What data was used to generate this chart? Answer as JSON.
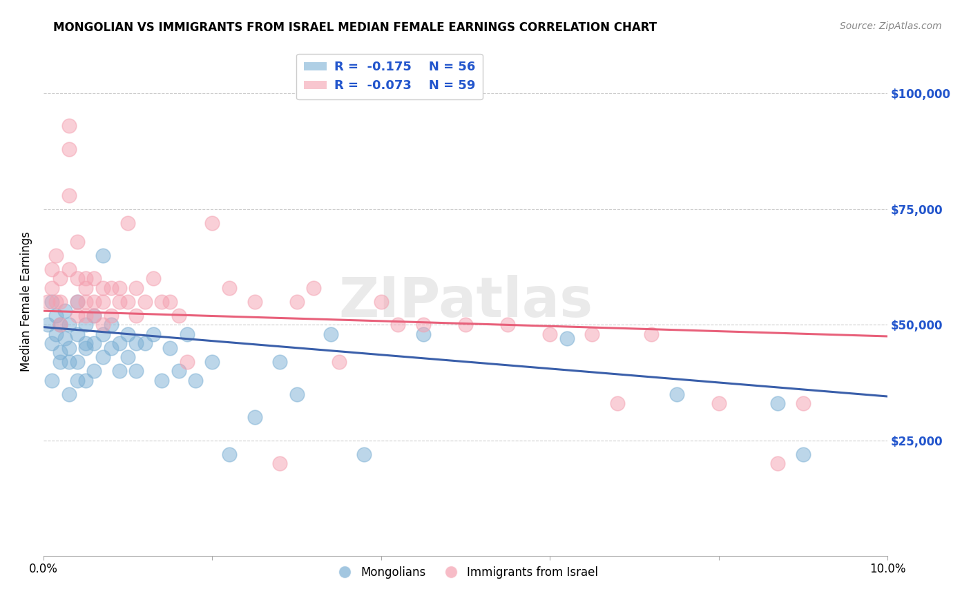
{
  "title": "MONGOLIAN VS IMMIGRANTS FROM ISRAEL MEDIAN FEMALE EARNINGS CORRELATION CHART",
  "source": "Source: ZipAtlas.com",
  "ylabel": "Median Female Earnings",
  "xlim": [
    0.0,
    0.1
  ],
  "ylim": [
    0,
    110000
  ],
  "yticks": [
    25000,
    50000,
    75000,
    100000
  ],
  "ytick_labels": [
    "$25,000",
    "$50,000",
    "$75,000",
    "$100,000"
  ],
  "xticks": [
    0.0,
    0.02,
    0.04,
    0.06,
    0.08,
    0.1
  ],
  "xtick_labels": [
    "0.0%",
    "",
    "",
    "",
    "",
    "10.0%"
  ],
  "background_color": "#ffffff",
  "grid_color": "#cccccc",
  "blue_color": "#7bafd4",
  "pink_color": "#f4a0b0",
  "blue_line_color": "#3a5faa",
  "pink_line_color": "#e8607a",
  "watermark": "ZIPatlas",
  "legend_R_blue": "-0.175",
  "legend_N_blue": "56",
  "legend_R_pink": "-0.073",
  "legend_N_pink": "59",
  "blue_intercept": 49500,
  "blue_slope": -150000,
  "pink_intercept": 53000,
  "pink_slope": -55000,
  "mongolians_x": [
    0.0005,
    0.001,
    0.001,
    0.001,
    0.0015,
    0.0015,
    0.002,
    0.002,
    0.002,
    0.0025,
    0.0025,
    0.003,
    0.003,
    0.003,
    0.003,
    0.004,
    0.004,
    0.004,
    0.004,
    0.005,
    0.005,
    0.005,
    0.005,
    0.006,
    0.006,
    0.006,
    0.007,
    0.007,
    0.007,
    0.008,
    0.008,
    0.009,
    0.009,
    0.01,
    0.01,
    0.011,
    0.011,
    0.012,
    0.013,
    0.014,
    0.015,
    0.016,
    0.017,
    0.018,
    0.02,
    0.022,
    0.025,
    0.028,
    0.03,
    0.034,
    0.038,
    0.045,
    0.062,
    0.075,
    0.087,
    0.09
  ],
  "mongolians_y": [
    50000,
    55000,
    46000,
    38000,
    48000,
    52000,
    44000,
    50000,
    42000,
    47000,
    53000,
    45000,
    50000,
    42000,
    35000,
    48000,
    55000,
    42000,
    38000,
    50000,
    45000,
    38000,
    46000,
    52000,
    46000,
    40000,
    65000,
    48000,
    43000,
    50000,
    45000,
    46000,
    40000,
    48000,
    43000,
    46000,
    40000,
    46000,
    48000,
    38000,
    45000,
    40000,
    48000,
    38000,
    42000,
    22000,
    30000,
    42000,
    35000,
    48000,
    22000,
    48000,
    47000,
    35000,
    33000,
    22000
  ],
  "israel_x": [
    0.0005,
    0.001,
    0.001,
    0.0015,
    0.0015,
    0.002,
    0.002,
    0.002,
    0.003,
    0.003,
    0.003,
    0.003,
    0.004,
    0.004,
    0.004,
    0.004,
    0.005,
    0.005,
    0.005,
    0.005,
    0.006,
    0.006,
    0.006,
    0.007,
    0.007,
    0.007,
    0.008,
    0.008,
    0.009,
    0.009,
    0.01,
    0.01,
    0.011,
    0.011,
    0.012,
    0.013,
    0.014,
    0.015,
    0.016,
    0.017,
    0.02,
    0.022,
    0.025,
    0.028,
    0.03,
    0.032,
    0.035,
    0.04,
    0.042,
    0.045,
    0.05,
    0.055,
    0.06,
    0.065,
    0.068,
    0.072,
    0.08,
    0.087,
    0.09
  ],
  "israel_y": [
    55000,
    62000,
    58000,
    65000,
    55000,
    60000,
    55000,
    50000,
    93000,
    88000,
    78000,
    62000,
    68000,
    55000,
    60000,
    52000,
    60000,
    55000,
    58000,
    52000,
    55000,
    60000,
    52000,
    58000,
    55000,
    50000,
    58000,
    52000,
    55000,
    58000,
    72000,
    55000,
    58000,
    52000,
    55000,
    60000,
    55000,
    55000,
    52000,
    42000,
    72000,
    58000,
    55000,
    20000,
    55000,
    58000,
    42000,
    55000,
    50000,
    50000,
    50000,
    50000,
    48000,
    48000,
    33000,
    48000,
    33000,
    20000,
    33000
  ]
}
